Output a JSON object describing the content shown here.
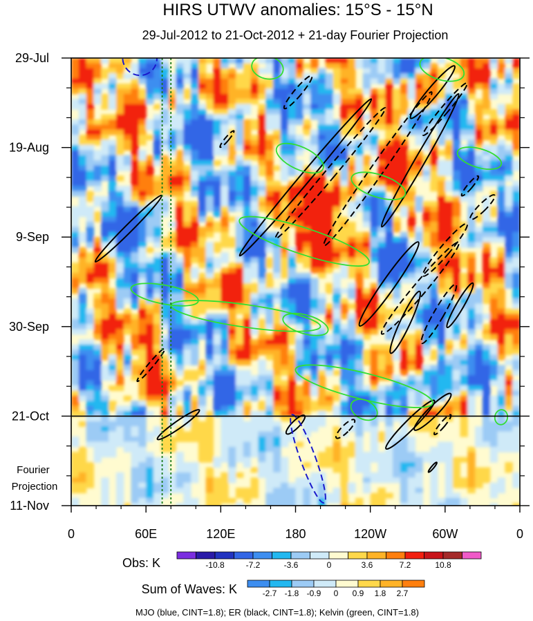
{
  "chart_data": {
    "type": "heatmap",
    "title": "HIRS UTWV anomalies: 15°S - 15°N",
    "subtitle": "29-Jul-2012 to 21-Oct-2012 + 21-day Fourier Projection",
    "x_ticks": [
      "0",
      "60E",
      "120E",
      "180",
      "120W",
      "60W",
      "0"
    ],
    "x_tick_values": [
      0,
      60,
      120,
      180,
      240,
      300,
      360
    ],
    "xlim": [
      0,
      360
    ],
    "y_ticks": [
      "29-Jul",
      "19-Aug",
      "9-Sep",
      "30-Sep",
      "21-Oct",
      "11-Nov"
    ],
    "y_tick_values": [
      0,
      21,
      42,
      63,
      84,
      105
    ],
    "ylim": [
      0,
      105
    ],
    "projection_start_day": 84,
    "projection_label": "Fourier\nProjection",
    "reference_longitudes": [
      73,
      80
    ],
    "obs_colorbar": {
      "label": "Obs: K",
      "colors": [
        "#7b2ee0",
        "#2a1aa8",
        "#2233c0",
        "#3366e6",
        "#3d8ef0",
        "#22b8f0",
        "#9ccbf5",
        "#cfeaf8",
        "#fffbd0",
        "#ffd84a",
        "#ffb327",
        "#ff7f0e",
        "#f22010",
        "#c8141a",
        "#a52a2a",
        "#f05ac8"
      ],
      "tick_labels": [
        "-10.8",
        "-7.2",
        "-3.6",
        "0",
        "3.6",
        "7.2",
        "10.8"
      ]
    },
    "waves_colorbar": {
      "label": "Sum of Waves: K",
      "colors": [
        "#3d8ef0",
        "#22b8f0",
        "#9ccbf5",
        "#cfeaf8",
        "#fffbd0",
        "#ffd84a",
        "#ffb327",
        "#ff7f0e"
      ],
      "tick_labels": [
        "-2.7",
        "-1.8",
        "-0.9",
        "0",
        "0.9",
        "1.8",
        "2.7"
      ]
    },
    "legend_note": "MJO (blue, CINT=1.8); ER (black, CINT=1.8); Kelvin (green, CINT=1.8)",
    "contours": {
      "mjo": [
        {
          "lon": 55,
          "day": 0,
          "rx": 14,
          "ry": 4,
          "rot": 60,
          "dashed": true
        },
        {
          "lon": 190,
          "day": 94,
          "rx": 6,
          "ry": 11,
          "rot": -20,
          "dashed": true
        }
      ],
      "er": [
        {
          "lon": 188,
          "day": 28,
          "rx": 4,
          "ry": 24,
          "rot": 40,
          "dashed": false
        },
        {
          "lon": 208,
          "day": 27,
          "rx": 4,
          "ry": 20,
          "rot": 40,
          "dashed": true
        },
        {
          "lon": 246,
          "day": 26,
          "rx": 5,
          "ry": 22,
          "rot": 35,
          "dashed": true
        },
        {
          "lon": 280,
          "day": 24,
          "rx": 4,
          "ry": 18,
          "rot": 30,
          "dashed": false
        },
        {
          "lon": 290,
          "day": 8,
          "rx": 4,
          "ry": 8,
          "rot": 40,
          "dashed": false
        },
        {
          "lon": 300,
          "day": 12,
          "rx": 3,
          "ry": 8,
          "rot": 40,
          "dashed": true
        },
        {
          "lon": 255,
          "day": 53,
          "rx": 5,
          "ry": 12,
          "rot": 35,
          "dashed": false
        },
        {
          "lon": 280,
          "day": 54,
          "rx": 5,
          "ry": 14,
          "rot": 40,
          "dashed": true
        },
        {
          "lon": 300,
          "day": 45,
          "rx": 4,
          "ry": 8,
          "rot": 40,
          "dashed": true
        },
        {
          "lon": 268,
          "day": 62,
          "rx": 4,
          "ry": 8,
          "rot": 25,
          "dashed": false
        },
        {
          "lon": 295,
          "day": 60,
          "rx": 4,
          "ry": 8,
          "rot": 30,
          "dashed": true
        },
        {
          "lon": 312,
          "day": 58,
          "rx": 3,
          "ry": 6,
          "rot": 30,
          "dashed": false
        },
        {
          "lon": 330,
          "day": 35,
          "rx": 3,
          "ry": 4,
          "rot": 45,
          "dashed": true
        },
        {
          "lon": 320,
          "day": 30,
          "rx": 2,
          "ry": 3,
          "rot": 40,
          "dashed": true
        },
        {
          "lon": 46,
          "day": 40,
          "rx": 3,
          "ry": 11,
          "rot": 45,
          "dashed": false
        },
        {
          "lon": 64,
          "day": 72,
          "rx": 2,
          "ry": 5,
          "rot": 40,
          "dashed": true
        },
        {
          "lon": 86,
          "day": 86,
          "rx": 3,
          "ry": 6,
          "rot": 55,
          "dashed": false
        },
        {
          "lon": 182,
          "day": 8,
          "rx": 3,
          "ry": 5,
          "rot": 40,
          "dashed": true
        },
        {
          "lon": 125,
          "day": 19,
          "rx": 1.5,
          "ry": 2.5,
          "rot": 40,
          "dashed": true
        },
        {
          "lon": 180,
          "day": 86,
          "rx": 3,
          "ry": 3,
          "rot": 45,
          "dashed": false
        },
        {
          "lon": 220,
          "day": 87,
          "rx": 3,
          "ry": 3,
          "rot": 45,
          "dashed": true
        },
        {
          "lon": 272,
          "day": 86,
          "rx": 4,
          "ry": 8,
          "rot": 45,
          "dashed": false
        },
        {
          "lon": 290,
          "day": 83,
          "rx": 4,
          "ry": 6,
          "rot": 45,
          "dashed": false
        },
        {
          "lon": 298,
          "day": 86,
          "rx": 2,
          "ry": 3,
          "rot": 40,
          "dashed": true
        },
        {
          "lon": 290,
          "day": 96,
          "rx": 1,
          "ry": 1.5,
          "rot": 40,
          "dashed": false
        }
      ],
      "kelvin": [
        {
          "lon1": 145,
          "day1": 1.5,
          "lon2": 170,
          "day2": 3,
          "w": 1.2
        },
        {
          "lon1": 280,
          "day1": 1,
          "lon2": 315,
          "day2": 4,
          "w": 1.2
        },
        {
          "lon1": 165,
          "day1": 21,
          "lon2": 202,
          "day2": 26,
          "w": 1.2
        },
        {
          "lon1": 310,
          "day1": 22,
          "lon2": 345,
          "day2": 25,
          "w": 1
        },
        {
          "lon1": 225,
          "day1": 28,
          "lon2": 268,
          "day2": 32,
          "w": 1.2
        },
        {
          "lon1": 135,
          "day1": 38,
          "lon2": 239,
          "day2": 48,
          "w": 1.4
        },
        {
          "lon1": 48,
          "day1": 54,
          "lon2": 102,
          "day2": 57,
          "w": 1
        },
        {
          "lon1": 80,
          "day1": 58,
          "lon2": 200,
          "day2": 63,
          "w": 1.2
        },
        {
          "lon1": 170,
          "day1": 61,
          "lon2": 206,
          "day2": 64,
          "w": 1
        },
        {
          "lon1": 180,
          "day1": 73,
          "lon2": 290,
          "day2": 81,
          "w": 1.4
        },
        {
          "lon1": 225,
          "day1": 81,
          "lon2": 245,
          "day2": 84,
          "w": 1
        },
        {
          "lon1": 340,
          "day1": 84,
          "lon2": 350,
          "day2": 84.5,
          "w": 0.8
        }
      ]
    }
  }
}
